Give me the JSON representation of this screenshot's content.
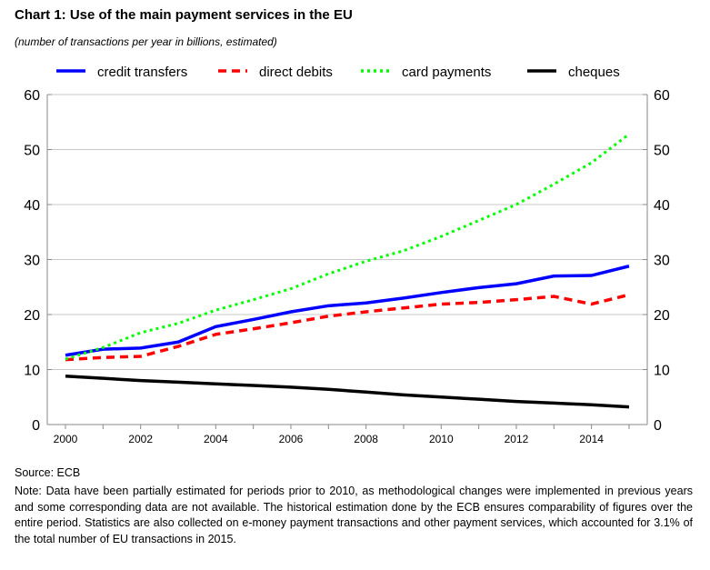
{
  "title": "Chart 1: Use of the main payment services in the EU",
  "subtitle": "(number of transactions per year in billions, estimated)",
  "source": "Source: ECB",
  "note": "Note: Data have been partially estimated for periods prior to 2010, as methodological changes were implemented in previous years and some corresponding data are not available. The historical estimation done by the ECB ensures comparability of figures over the entire period. Statistics are also collected on e-money payment transactions and other payment services, which accounted for 3.1% of the total number of EU transactions in 2015.",
  "chart_data": {
    "type": "line",
    "title": "Chart 1: Use of the main payment services in the EU",
    "xlabel": "",
    "ylabel": "",
    "x": [
      2000,
      2001,
      2002,
      2003,
      2004,
      2005,
      2006,
      2007,
      2008,
      2009,
      2010,
      2011,
      2012,
      2013,
      2014,
      2015
    ],
    "xticks": [
      "2000",
      "2002",
      "2004",
      "2006",
      "2008",
      "2010",
      "2012",
      "2014"
    ],
    "yticks": [
      "0",
      "10",
      "20",
      "30",
      "40",
      "50",
      "60"
    ],
    "ylim": [
      0,
      60
    ],
    "grid": true,
    "legend": "top",
    "series": [
      {
        "name": "credit transfers",
        "color": "#0000ff",
        "style": "solid",
        "values": [
          12.6,
          13.7,
          13.9,
          15.0,
          17.8,
          19.1,
          20.5,
          21.6,
          22.1,
          23.0,
          24.0,
          24.9,
          25.6,
          27.0,
          27.1,
          28.8
        ]
      },
      {
        "name": "direct debits",
        "color": "#ff0000",
        "style": "dashed",
        "values": [
          11.8,
          12.2,
          12.4,
          14.2,
          16.4,
          17.4,
          18.5,
          19.7,
          20.5,
          21.2,
          21.9,
          22.2,
          22.7,
          23.3,
          21.9,
          23.6
        ]
      },
      {
        "name": "card payments",
        "color": "#00ff00",
        "style": "dotted",
        "values": [
          11.9,
          14.0,
          16.7,
          18.4,
          20.8,
          22.7,
          24.7,
          27.4,
          29.7,
          31.6,
          34.2,
          37.1,
          40.0,
          43.7,
          47.6,
          52.8
        ]
      },
      {
        "name": "cheques",
        "color": "#000000",
        "style": "solid",
        "values": [
          8.8,
          8.4,
          8.0,
          7.7,
          7.4,
          7.1,
          6.8,
          6.4,
          5.9,
          5.4,
          5.0,
          4.6,
          4.2,
          3.9,
          3.6,
          3.2
        ]
      }
    ]
  }
}
